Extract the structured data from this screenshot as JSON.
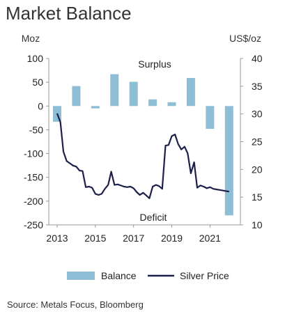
{
  "title": "Market Balance",
  "source": "Source: Metals Focus, Bloomberg",
  "chart_data": {
    "type": "bar+line",
    "left_axis": {
      "unit": "Moz",
      "min": -250,
      "max": 100,
      "ticks": [
        100,
        50,
        0,
        -50,
        -100,
        -150,
        -200,
        -250
      ]
    },
    "right_axis": {
      "unit": "US$/oz",
      "min": 10,
      "max": 40,
      "ticks": [
        40,
        35,
        30,
        25,
        20,
        15,
        10
      ]
    },
    "x_ticks": [
      "2013",
      "2015",
      "2017",
      "2019",
      "2021"
    ],
    "annotations": [
      "Surplus",
      "Deficit"
    ],
    "legend": {
      "position": "bottom",
      "balance": "Balance",
      "price": "Silver Price"
    },
    "colors": {
      "bar": "#8ebdd6",
      "line": "#1c1f4a"
    },
    "balance": {
      "name": "Balance",
      "x": [
        2013,
        2014,
        2015,
        2016,
        2017,
        2018,
        2019,
        2020,
        2021,
        2022
      ],
      "values": [
        -33,
        42,
        -5,
        67,
        51,
        14,
        8,
        59,
        -48,
        -230
      ]
    },
    "silver_price": {
      "name": "Silver Price",
      "x": [
        2013.0,
        2013.17,
        2013.33,
        2013.5,
        2013.67,
        2013.83,
        2014.0,
        2014.17,
        2014.33,
        2014.5,
        2014.67,
        2014.83,
        2015.0,
        2015.17,
        2015.33,
        2015.5,
        2015.67,
        2015.83,
        2016.0,
        2016.17,
        2016.33,
        2016.5,
        2016.67,
        2016.83,
        2017.0,
        2017.17,
        2017.33,
        2017.5,
        2017.67,
        2017.83,
        2018.0,
        2018.17,
        2018.33,
        2018.5,
        2018.67,
        2018.83,
        2019.0,
        2019.17,
        2019.33,
        2019.5,
        2019.67,
        2019.83,
        2020.0,
        2020.17,
        2020.33,
        2020.5,
        2020.67,
        2020.83,
        2021.0,
        2021.17,
        2021.33,
        2021.5,
        2021.67,
        2021.83,
        2022.0
      ],
      "values": [
        30.1,
        28.5,
        23.2,
        21.5,
        21.1,
        20.7,
        20.5,
        19.8,
        19.7,
        16.8,
        16.9,
        16.7,
        15.6,
        15.4,
        15.6,
        16.5,
        17.2,
        19.6,
        17.2,
        17.3,
        17.1,
        16.9,
        16.8,
        16.9,
        16.6,
        15.9,
        15.4,
        15.8,
        15.3,
        14.8,
        16.9,
        17.2,
        17.0,
        16.5,
        24.3,
        24.4,
        26.0,
        26.3,
        24.6,
        23.6,
        24.1,
        22.9,
        19.3,
        21.3,
        16.7,
        17.1,
        16.9,
        16.6,
        16.8,
        16.5,
        16.4,
        16.3,
        16.2,
        16.1,
        16.0
      ]
    }
  }
}
